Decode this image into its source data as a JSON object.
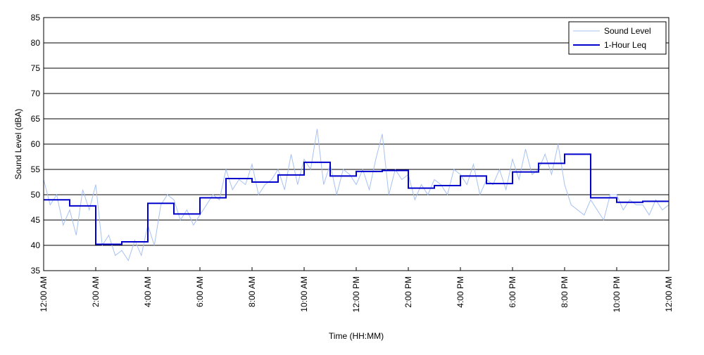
{
  "chart_data": {
    "type": "line",
    "title": "",
    "xlabel": "Time (HH:MM)",
    "ylabel": "Sound Level (dBA)",
    "xlim": [
      0,
      24
    ],
    "ylim": [
      35,
      85
    ],
    "y_ticks": [
      35,
      40,
      45,
      50,
      55,
      60,
      65,
      70,
      75,
      80,
      85
    ],
    "x_ticks": [
      0,
      2,
      4,
      6,
      8,
      10,
      12,
      14,
      16,
      18,
      20,
      22,
      24
    ],
    "x_tick_labels": [
      "12:00 AM",
      "2:00 AM",
      "4:00 AM",
      "6:00 AM",
      "8:00 AM",
      "10:00 AM",
      "12:00 PM",
      "2:00 PM",
      "4:00 PM",
      "6:00 PM",
      "8:00 PM",
      "10:00 PM",
      "12:00 AM"
    ],
    "grid": "horizontal",
    "legend_position": "top-right",
    "series": [
      {
        "name": "Sound Level",
        "color": "#a7c1f2",
        "style": "thin-line",
        "x": [
          0.0,
          0.25,
          0.5,
          0.75,
          1.0,
          1.25,
          1.5,
          1.75,
          2.0,
          2.25,
          2.5,
          2.75,
          3.0,
          3.25,
          3.5,
          3.75,
          4.0,
          4.25,
          4.5,
          4.75,
          5.0,
          5.25,
          5.5,
          5.75,
          6.0,
          6.25,
          6.5,
          6.75,
          7.0,
          7.25,
          7.5,
          7.75,
          8.0,
          8.25,
          8.5,
          8.75,
          9.0,
          9.25,
          9.5,
          9.75,
          10.0,
          10.25,
          10.5,
          10.75,
          11.0,
          11.25,
          11.5,
          11.75,
          12.0,
          12.25,
          12.5,
          12.75,
          13.0,
          13.25,
          13.5,
          13.75,
          14.0,
          14.25,
          14.5,
          14.75,
          15.0,
          15.25,
          15.5,
          15.75,
          16.0,
          16.25,
          16.5,
          16.75,
          17.0,
          17.25,
          17.5,
          17.75,
          18.0,
          18.25,
          18.5,
          18.75,
          19.0,
          19.25,
          19.5,
          19.75,
          20.0,
          20.25,
          20.5,
          20.75,
          21.0,
          21.25,
          21.5,
          21.75,
          22.0,
          22.25,
          22.5,
          22.75,
          23.0,
          23.25,
          23.5,
          23.75,
          24.0
        ],
        "values": [
          53,
          48,
          50,
          44,
          47,
          42,
          51,
          47,
          52,
          40,
          42,
          38,
          39,
          37,
          41,
          38,
          44,
          40,
          48,
          50,
          49,
          45,
          47,
          44,
          46,
          48,
          50,
          49,
          55,
          51,
          53,
          52,
          56,
          50,
          52,
          53,
          55,
          51,
          58,
          52,
          57,
          55,
          63,
          52,
          56,
          50,
          55,
          54,
          52,
          55,
          51,
          57,
          62,
          50,
          55,
          53,
          54,
          49,
          52,
          50,
          53,
          52,
          50,
          55,
          54,
          52,
          56,
          50,
          53,
          52,
          55,
          51,
          57,
          53,
          59,
          54,
          55,
          58,
          54,
          60,
          52,
          48,
          47,
          46,
          49,
          47,
          45,
          50,
          50,
          47,
          49,
          48,
          48,
          46,
          49,
          47,
          48
        ]
      },
      {
        "name": "1-Hour Leq",
        "color": "#0000cc",
        "style": "step",
        "x": [
          0,
          1,
          2,
          3,
          4,
          5,
          6,
          7,
          8,
          9,
          10,
          11,
          12,
          13,
          14,
          15,
          16,
          17,
          18,
          19,
          20,
          21,
          22,
          23,
          24
        ],
        "values": [
          49.0,
          47.8,
          40.2,
          40.7,
          48.3,
          46.2,
          49.4,
          53.2,
          52.5,
          53.9,
          56.4,
          53.7,
          54.6,
          54.8,
          51.3,
          51.8,
          53.7,
          52.2,
          54.5,
          56.2,
          58.0,
          49.4,
          48.5,
          48.7,
          48.7
        ]
      }
    ]
  }
}
